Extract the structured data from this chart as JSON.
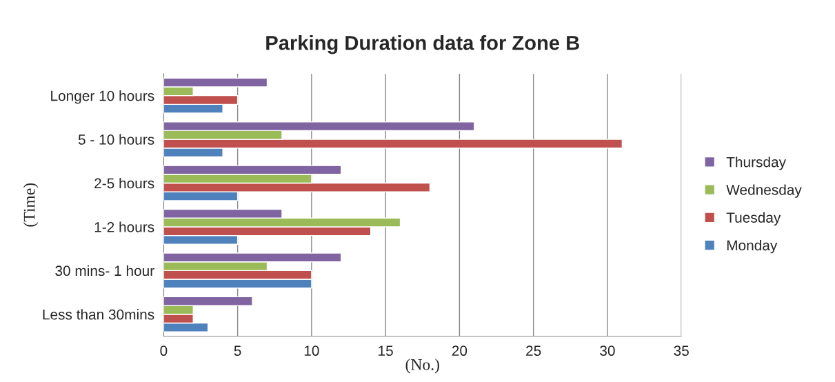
{
  "chart_data": {
    "type": "bar",
    "orientation": "horizontal",
    "title": "Parking Duration data for Zone B",
    "xlabel": "(No.)",
    "ylabel": "(Time)",
    "categories": [
      "Longer 10 hours",
      "5 - 10 hours",
      "2-5 hours",
      "1-2 hours",
      "30 mins- 1 hour",
      "Less than 30mins"
    ],
    "series": [
      {
        "name": "Monday",
        "color": "#4f81bd",
        "values": [
          4,
          4,
          5,
          5,
          10,
          3
        ]
      },
      {
        "name": "Tuesday",
        "color": "#c0504d",
        "values": [
          5,
          31,
          18,
          14,
          10,
          2
        ]
      },
      {
        "name": "Wednesday",
        "color": "#9bbb59",
        "values": [
          2,
          8,
          10,
          16,
          7,
          2
        ]
      },
      {
        "name": "Thursday",
        "color": "#8064a2",
        "values": [
          7,
          21,
          12,
          8,
          12,
          6
        ]
      }
    ],
    "xlim": [
      0,
      35
    ],
    "xticks": [
      0,
      5,
      10,
      15,
      20,
      25,
      30,
      35
    ],
    "grid": "x",
    "legend": "right"
  }
}
